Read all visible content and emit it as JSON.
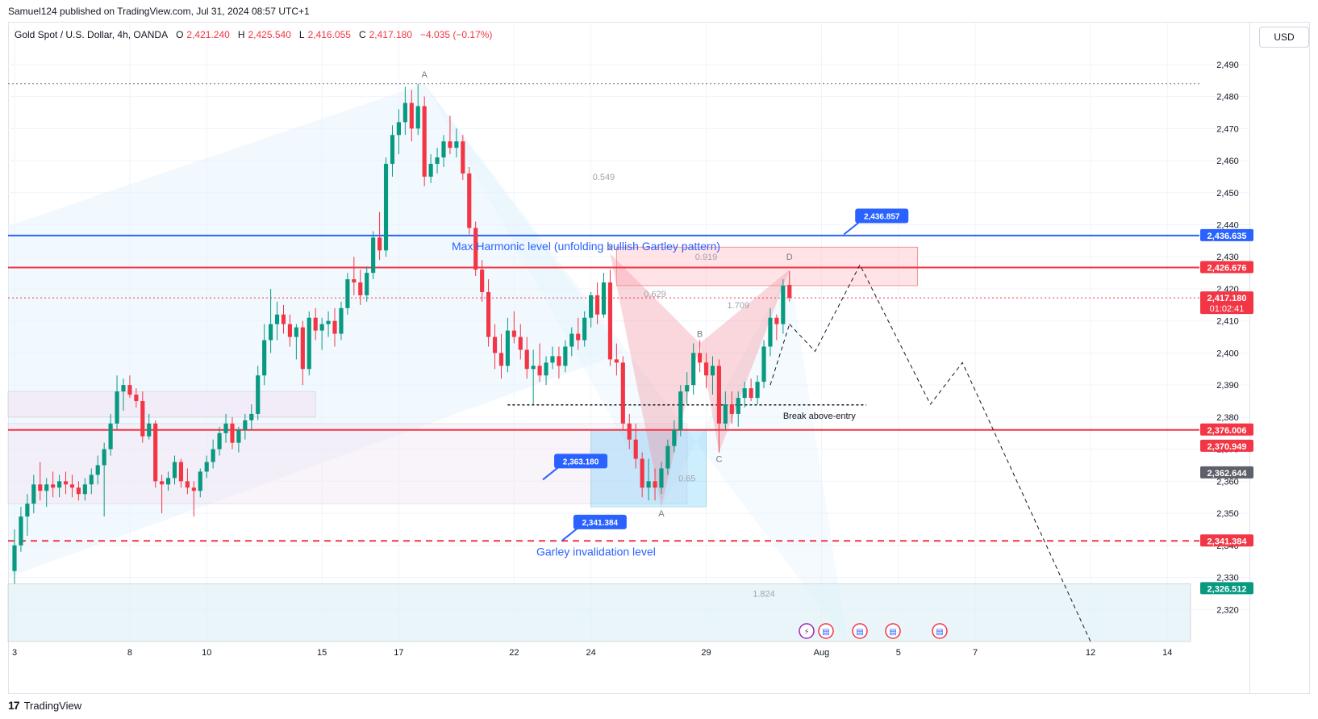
{
  "header": {
    "publisher": "Samuel124 published on TradingView.com, Jul 31, 2024 08:57 UTC+1",
    "symbol": "Gold Spot / U.S. Dollar, 4h, OANDA",
    "ohlc": [
      {
        "k": "O",
        "v": "2,421.240"
      },
      {
        "k": "H",
        "v": "2,425.540"
      },
      {
        "k": "L",
        "v": "2,416.055"
      },
      {
        "k": "C",
        "v": "2,417.180"
      }
    ],
    "change": "−4.035 (−0.17%)",
    "currency": "USD"
  },
  "footer": {
    "logo": "17",
    "brand": "TradingView"
  },
  "colors": {
    "up": "#089981",
    "down": "#f23645",
    "blue": "#2962ff",
    "red": "#f23645",
    "gray_label": "#5d606b",
    "grid": "#f0f3fa"
  },
  "chart_data": {
    "type": "candlestick",
    "title": "Gold Spot / U.S. Dollar, 4h, OANDA",
    "ylim": [
      2310,
      2495
    ],
    "yticks": [
      2320,
      2330,
      2340,
      2350,
      2360,
      2370,
      2380,
      2390,
      2400,
      2410,
      2420,
      2430,
      2440,
      2450,
      2460,
      2470,
      2480,
      2490
    ],
    "x_index_range": [
      0,
      184
    ],
    "xticks": [
      {
        "i": 0,
        "label": "3"
      },
      {
        "i": 18,
        "label": "8"
      },
      {
        "i": 30,
        "label": "10"
      },
      {
        "i": 48,
        "label": "15"
      },
      {
        "i": 60,
        "label": "17"
      },
      {
        "i": 78,
        "label": "22"
      },
      {
        "i": 90,
        "label": "24"
      },
      {
        "i": 108,
        "label": "29"
      },
      {
        "i": 126,
        "label": "Aug"
      },
      {
        "i": 138,
        "label": "5"
      },
      {
        "i": 150,
        "label": "7"
      },
      {
        "i": 168,
        "label": "12"
      },
      {
        "i": 180,
        "label": "14"
      }
    ],
    "candles": [
      {
        "i": 0,
        "o": 2332.0,
        "h": 2345.0,
        "l": 2328.0,
        "c": 2340.0
      },
      {
        "i": 1,
        "o": 2340.0,
        "h": 2352.0,
        "l": 2338.0,
        "c": 2349.0
      },
      {
        "i": 2,
        "o": 2349.0,
        "h": 2356.0,
        "l": 2343.0,
        "c": 2353.0
      },
      {
        "i": 3,
        "o": 2353.0,
        "h": 2362.0,
        "l": 2350.0,
        "c": 2359.0
      },
      {
        "i": 4,
        "o": 2359.0,
        "h": 2366.0,
        "l": 2354.0,
        "c": 2357.0
      },
      {
        "i": 5,
        "o": 2357.0,
        "h": 2361.0,
        "l": 2352.0,
        "c": 2359.0
      },
      {
        "i": 6,
        "o": 2359.0,
        "h": 2363.0,
        "l": 2355.0,
        "c": 2358.0
      },
      {
        "i": 7,
        "o": 2358.0,
        "h": 2362.0,
        "l": 2355.0,
        "c": 2360.0
      },
      {
        "i": 8,
        "o": 2360.0,
        "h": 2363.0,
        "l": 2356.0,
        "c": 2359.0
      },
      {
        "i": 9,
        "o": 2359.0,
        "h": 2362.0,
        "l": 2355.0,
        "c": 2358.0
      },
      {
        "i": 10,
        "o": 2358.0,
        "h": 2360.0,
        "l": 2354.0,
        "c": 2356.0
      },
      {
        "i": 11,
        "o": 2356.0,
        "h": 2361.0,
        "l": 2354.0,
        "c": 2359.0
      },
      {
        "i": 12,
        "o": 2359.0,
        "h": 2364.0,
        "l": 2356.0,
        "c": 2362.0
      },
      {
        "i": 13,
        "o": 2362.0,
        "h": 2368.0,
        "l": 2359.0,
        "c": 2365.0
      },
      {
        "i": 14,
        "o": 2365.0,
        "h": 2372.0,
        "l": 2349.0,
        "c": 2370.0
      },
      {
        "i": 15,
        "o": 2370.0,
        "h": 2381.0,
        "l": 2368.0,
        "c": 2378.0
      },
      {
        "i": 16,
        "o": 2378.0,
        "h": 2393.0,
        "l": 2376.0,
        "c": 2388.0
      },
      {
        "i": 17,
        "o": 2388.0,
        "h": 2392.0,
        "l": 2382.0,
        "c": 2390.0
      },
      {
        "i": 18,
        "o": 2390.0,
        "h": 2393.0,
        "l": 2386.0,
        "c": 2387.0
      },
      {
        "i": 19,
        "o": 2387.0,
        "h": 2389.0,
        "l": 2383.0,
        "c": 2385.0
      },
      {
        "i": 20,
        "o": 2385.0,
        "h": 2388.0,
        "l": 2372.0,
        "c": 2374.0
      },
      {
        "i": 21,
        "o": 2374.0,
        "h": 2381.0,
        "l": 2373.0,
        "c": 2378.0
      },
      {
        "i": 22,
        "o": 2378.0,
        "h": 2379.0,
        "l": 2358.0,
        "c": 2360.0
      },
      {
        "i": 23,
        "o": 2360.0,
        "h": 2362.0,
        "l": 2350.0,
        "c": 2359.0
      },
      {
        "i": 24,
        "o": 2359.0,
        "h": 2363.0,
        "l": 2357.0,
        "c": 2361.0
      },
      {
        "i": 25,
        "o": 2361.0,
        "h": 2368.0,
        "l": 2359.0,
        "c": 2366.0
      },
      {
        "i": 26,
        "o": 2366.0,
        "h": 2367.0,
        "l": 2358.0,
        "c": 2360.0
      },
      {
        "i": 27,
        "o": 2360.0,
        "h": 2364.0,
        "l": 2356.0,
        "c": 2358.0
      },
      {
        "i": 28,
        "o": 2358.0,
        "h": 2360.0,
        "l": 2349.0,
        "c": 2357.0
      },
      {
        "i": 29,
        "o": 2357.0,
        "h": 2364.0,
        "l": 2355.0,
        "c": 2363.0
      },
      {
        "i": 30,
        "o": 2363.0,
        "h": 2368.0,
        "l": 2361.0,
        "c": 2366.0
      },
      {
        "i": 31,
        "o": 2366.0,
        "h": 2373.0,
        "l": 2364.0,
        "c": 2370.0
      },
      {
        "i": 32,
        "o": 2370.0,
        "h": 2377.0,
        "l": 2368.0,
        "c": 2375.0
      },
      {
        "i": 33,
        "o": 2375.0,
        "h": 2381.0,
        "l": 2372.0,
        "c": 2378.0
      },
      {
        "i": 34,
        "o": 2378.0,
        "h": 2380.0,
        "l": 2370.0,
        "c": 2372.0
      },
      {
        "i": 35,
        "o": 2372.0,
        "h": 2377.0,
        "l": 2369.0,
        "c": 2376.0
      },
      {
        "i": 36,
        "o": 2376.0,
        "h": 2381.0,
        "l": 2373.0,
        "c": 2379.0
      },
      {
        "i": 37,
        "o": 2379.0,
        "h": 2384.0,
        "l": 2376.0,
        "c": 2381.0
      },
      {
        "i": 38,
        "o": 2381.0,
        "h": 2396.0,
        "l": 2379.0,
        "c": 2393.0
      },
      {
        "i": 39,
        "o": 2393.0,
        "h": 2409.0,
        "l": 2390.0,
        "c": 2404.0
      },
      {
        "i": 40,
        "o": 2404.0,
        "h": 2420.0,
        "l": 2400.0,
        "c": 2409.0
      },
      {
        "i": 41,
        "o": 2409.0,
        "h": 2416.0,
        "l": 2404.0,
        "c": 2412.0
      },
      {
        "i": 42,
        "o": 2412.0,
        "h": 2415.0,
        "l": 2406.0,
        "c": 2409.0
      },
      {
        "i": 43,
        "o": 2409.0,
        "h": 2412.0,
        "l": 2402.0,
        "c": 2405.0
      },
      {
        "i": 44,
        "o": 2405.0,
        "h": 2409.0,
        "l": 2398.0,
        "c": 2408.0
      },
      {
        "i": 45,
        "o": 2408.0,
        "h": 2410.0,
        "l": 2390.0,
        "c": 2395.0
      },
      {
        "i": 46,
        "o": 2395.0,
        "h": 2413.0,
        "l": 2393.0,
        "c": 2411.0
      },
      {
        "i": 47,
        "o": 2411.0,
        "h": 2414.0,
        "l": 2404.0,
        "c": 2407.0
      },
      {
        "i": 48,
        "o": 2407.0,
        "h": 2411.0,
        "l": 2401.0,
        "c": 2409.0
      },
      {
        "i": 49,
        "o": 2409.0,
        "h": 2413.0,
        "l": 2405.0,
        "c": 2410.0
      },
      {
        "i": 50,
        "o": 2410.0,
        "h": 2414.0,
        "l": 2402.0,
        "c": 2406.0
      },
      {
        "i": 51,
        "o": 2406.0,
        "h": 2416.0,
        "l": 2404.0,
        "c": 2414.0
      },
      {
        "i": 52,
        "o": 2414.0,
        "h": 2425.0,
        "l": 2412.0,
        "c": 2423.0
      },
      {
        "i": 53,
        "o": 2423.0,
        "h": 2430.0,
        "l": 2418.0,
        "c": 2422.0
      },
      {
        "i": 54,
        "o": 2422.0,
        "h": 2426.0,
        "l": 2415.0,
        "c": 2418.0
      },
      {
        "i": 55,
        "o": 2418.0,
        "h": 2427.0,
        "l": 2416.0,
        "c": 2425.0
      },
      {
        "i": 56,
        "o": 2425.0,
        "h": 2438.0,
        "l": 2423.0,
        "c": 2436.0
      },
      {
        "i": 57,
        "o": 2436.0,
        "h": 2444.0,
        "l": 2429.0,
        "c": 2432.0
      },
      {
        "i": 58,
        "o": 2432.0,
        "h": 2461.0,
        "l": 2430.0,
        "c": 2459.0
      },
      {
        "i": 59,
        "o": 2459.0,
        "h": 2471.0,
        "l": 2455.0,
        "c": 2468.0
      },
      {
        "i": 60,
        "o": 2468.0,
        "h": 2476.0,
        "l": 2462.0,
        "c": 2472.0
      },
      {
        "i": 61,
        "o": 2472.0,
        "h": 2483.0,
        "l": 2468.0,
        "c": 2478.0
      },
      {
        "i": 62,
        "o": 2478.0,
        "h": 2482.0,
        "l": 2466.0,
        "c": 2470.0
      },
      {
        "i": 63,
        "o": 2470.0,
        "h": 2484.0,
        "l": 2468.0,
        "c": 2477.0
      },
      {
        "i": 64,
        "o": 2477.0,
        "h": 2480.0,
        "l": 2452.0,
        "c": 2455.0
      },
      {
        "i": 65,
        "o": 2455.0,
        "h": 2462.0,
        "l": 2453.0,
        "c": 2459.0
      },
      {
        "i": 66,
        "o": 2459.0,
        "h": 2464.0,
        "l": 2456.0,
        "c": 2461.0
      },
      {
        "i": 67,
        "o": 2461.0,
        "h": 2468.0,
        "l": 2458.0,
        "c": 2466.0
      },
      {
        "i": 68,
        "o": 2466.0,
        "h": 2474.0,
        "l": 2462.0,
        "c": 2464.0
      },
      {
        "i": 69,
        "o": 2464.0,
        "h": 2470.0,
        "l": 2461.0,
        "c": 2466.0
      },
      {
        "i": 70,
        "o": 2466.0,
        "h": 2468.0,
        "l": 2454.0,
        "c": 2456.0
      },
      {
        "i": 71,
        "o": 2456.0,
        "h": 2458.0,
        "l": 2437.0,
        "c": 2439.0
      },
      {
        "i": 72,
        "o": 2439.0,
        "h": 2441.0,
        "l": 2424.0,
        "c": 2426.0
      },
      {
        "i": 73,
        "o": 2426.0,
        "h": 2429.0,
        "l": 2416.0,
        "c": 2419.0
      },
      {
        "i": 74,
        "o": 2419.0,
        "h": 2423.0,
        "l": 2402.0,
        "c": 2405.0
      },
      {
        "i": 75,
        "o": 2405.0,
        "h": 2409.0,
        "l": 2395.0,
        "c": 2400.0
      },
      {
        "i": 76,
        "o": 2400.0,
        "h": 2406.0,
        "l": 2392.0,
        "c": 2396.0
      },
      {
        "i": 77,
        "o": 2396.0,
        "h": 2411.0,
        "l": 2394.0,
        "c": 2407.0
      },
      {
        "i": 78,
        "o": 2407.0,
        "h": 2413.0,
        "l": 2403.0,
        "c": 2405.0
      },
      {
        "i": 79,
        "o": 2405.0,
        "h": 2409.0,
        "l": 2398.0,
        "c": 2401.0
      },
      {
        "i": 80,
        "o": 2401.0,
        "h": 2405.0,
        "l": 2392.0,
        "c": 2395.0
      },
      {
        "i": 81,
        "o": 2395.0,
        "h": 2401.0,
        "l": 2384.0,
        "c": 2396.0
      },
      {
        "i": 82,
        "o": 2396.0,
        "h": 2403.0,
        "l": 2391.0,
        "c": 2393.0
      },
      {
        "i": 83,
        "o": 2393.0,
        "h": 2399.0,
        "l": 2390.0,
        "c": 2397.0
      },
      {
        "i": 84,
        "o": 2397.0,
        "h": 2402.0,
        "l": 2395.0,
        "c": 2399.0
      },
      {
        "i": 85,
        "o": 2399.0,
        "h": 2402.0,
        "l": 2392.0,
        "c": 2396.0
      },
      {
        "i": 86,
        "o": 2396.0,
        "h": 2404.0,
        "l": 2394.0,
        "c": 2402.0
      },
      {
        "i": 87,
        "o": 2402.0,
        "h": 2408.0,
        "l": 2399.0,
        "c": 2406.0
      },
      {
        "i": 88,
        "o": 2406.0,
        "h": 2411.0,
        "l": 2401.0,
        "c": 2404.0
      },
      {
        "i": 89,
        "o": 2404.0,
        "h": 2413.0,
        "l": 2402.0,
        "c": 2411.0
      },
      {
        "i": 90,
        "o": 2411.0,
        "h": 2419.0,
        "l": 2408.0,
        "c": 2418.0
      },
      {
        "i": 91,
        "o": 2418.0,
        "h": 2422.0,
        "l": 2409.0,
        "c": 2412.0
      },
      {
        "i": 92,
        "o": 2412.0,
        "h": 2425.0,
        "l": 2411.0,
        "c": 2422.0
      },
      {
        "i": 93,
        "o": 2422.0,
        "h": 2426.0,
        "l": 2396.0,
        "c": 2398.0
      },
      {
        "i": 94,
        "o": 2398.0,
        "h": 2403.0,
        "l": 2393.0,
        "c": 2397.0
      },
      {
        "i": 95,
        "o": 2397.0,
        "h": 2399.0,
        "l": 2376.0,
        "c": 2378.0
      },
      {
        "i": 96,
        "o": 2378.0,
        "h": 2381.0,
        "l": 2370.0,
        "c": 2373.0
      },
      {
        "i": 97,
        "o": 2373.0,
        "h": 2378.0,
        "l": 2364.0,
        "c": 2367.0
      },
      {
        "i": 98,
        "o": 2367.0,
        "h": 2369.0,
        "l": 2355.0,
        "c": 2358.0
      },
      {
        "i": 99,
        "o": 2358.0,
        "h": 2367.0,
        "l": 2354.0,
        "c": 2360.0
      },
      {
        "i": 100,
        "o": 2360.0,
        "h": 2364.0,
        "l": 2354.0,
        "c": 2358.0
      },
      {
        "i": 101,
        "o": 2358.0,
        "h": 2366.0,
        "l": 2356.0,
        "c": 2364.0
      },
      {
        "i": 102,
        "o": 2364.0,
        "h": 2373.0,
        "l": 2362.0,
        "c": 2371.0
      },
      {
        "i": 103,
        "o": 2371.0,
        "h": 2379.0,
        "l": 2369.0,
        "c": 2376.0
      },
      {
        "i": 104,
        "o": 2376.0,
        "h": 2390.0,
        "l": 2374.0,
        "c": 2388.0
      },
      {
        "i": 105,
        "o": 2388.0,
        "h": 2394.0,
        "l": 2384.0,
        "c": 2390.0
      },
      {
        "i": 106,
        "o": 2390.0,
        "h": 2403.0,
        "l": 2387.0,
        "c": 2400.0
      },
      {
        "i": 107,
        "o": 2400.0,
        "h": 2404.0,
        "l": 2394.0,
        "c": 2397.0
      },
      {
        "i": 108,
        "o": 2397.0,
        "h": 2400.0,
        "l": 2389.0,
        "c": 2393.0
      },
      {
        "i": 109,
        "o": 2393.0,
        "h": 2399.0,
        "l": 2387.0,
        "c": 2396.0
      },
      {
        "i": 110,
        "o": 2396.0,
        "h": 2398.0,
        "l": 2369.0,
        "c": 2378.0
      },
      {
        "i": 111,
        "o": 2378.0,
        "h": 2388.0,
        "l": 2376.0,
        "c": 2384.0
      },
      {
        "i": 112,
        "o": 2384.0,
        "h": 2388.0,
        "l": 2378.0,
        "c": 2381.0
      },
      {
        "i": 113,
        "o": 2381.0,
        "h": 2388.0,
        "l": 2377.0,
        "c": 2386.0
      },
      {
        "i": 114,
        "o": 2386.0,
        "h": 2391.0,
        "l": 2383.0,
        "c": 2389.0
      },
      {
        "i": 115,
        "o": 2389.0,
        "h": 2392.0,
        "l": 2385.0,
        "c": 2386.0
      },
      {
        "i": 116,
        "o": 2386.0,
        "h": 2393.0,
        "l": 2384.0,
        "c": 2391.0
      },
      {
        "i": 117,
        "o": 2391.0,
        "h": 2404.0,
        "l": 2389.0,
        "c": 2402.0
      },
      {
        "i": 118,
        "o": 2402.0,
        "h": 2414.0,
        "l": 2399.0,
        "c": 2411.0
      },
      {
        "i": 119,
        "o": 2411.0,
        "h": 2412.0,
        "l": 2404.0,
        "c": 2409.0
      },
      {
        "i": 120,
        "o": 2409.0,
        "h": 2423.0,
        "l": 2406.0,
        "c": 2421.0
      },
      {
        "i": 121,
        "o": 2421.24,
        "h": 2425.54,
        "l": 2416.055,
        "c": 2417.18
      }
    ],
    "horizontal_lines": [
      {
        "price": 2436.635,
        "label": "2,436.635",
        "color": "#2962ff",
        "style": "solid",
        "text": "Max Harmonic level (unfolding bullish Gartley pattern)"
      },
      {
        "price": 2426.676,
        "label": "2,426.676",
        "color": "#f23645",
        "style": "solid"
      },
      {
        "price": 2376.006,
        "label": "2,376.006",
        "color": "#f23645",
        "style": "solid"
      },
      {
        "price": 2341.384,
        "label": "2,341.384",
        "color": "#f23645",
        "style": "dashed",
        "text": "Garley invalidation level"
      },
      {
        "price": 2484.0,
        "label": "",
        "color": "#787b86",
        "style": "dotted"
      },
      {
        "price": 2417.18,
        "label": "2,417.180",
        "color": "#f23645",
        "style": "dotted",
        "countdown": "01:02:41"
      }
    ],
    "axis_labels": [
      {
        "price": 2370.949,
        "label": "2,370.949",
        "color": "#f23645"
      },
      {
        "price": 2362.644,
        "label": "2,362.644",
        "color": "#5d606b"
      },
      {
        "price": 2326.512,
        "label": "2,326.512",
        "color": "#089981"
      }
    ],
    "callouts": [
      {
        "text": "2,436.857",
        "i": 130,
        "price": 2439.5
      },
      {
        "text": "2,363.180",
        "i": 83,
        "price": 2363.0
      },
      {
        "text": "2,341.384",
        "i": 86,
        "price": 2344.0
      }
    ],
    "pattern_labels": [
      {
        "text": "A",
        "i": 64,
        "price": 2486.0
      },
      {
        "text": "X",
        "i": 93,
        "price": 2432.0
      },
      {
        "text": "B",
        "i": 107,
        "price": 2405.0
      },
      {
        "text": "C",
        "i": 110,
        "price": 2366.0
      },
      {
        "text": "D",
        "i": 121,
        "price": 2429.0
      },
      {
        "text": "A",
        "i": 101,
        "price": 2349.0
      }
    ],
    "ratio_labels": [
      {
        "text": "0.549",
        "i": 92,
        "price": 2454.0
      },
      {
        "text": "0.919",
        "i": 108,
        "price": 2429.0
      },
      {
        "text": "0.629",
        "i": 100,
        "price": 2417.5
      },
      {
        "text": "1.709",
        "i": 113,
        "price": 2414.0
      },
      {
        "text": "0.65",
        "i": 105,
        "price": 2360.0
      },
      {
        "text": "1.824",
        "i": 117,
        "price": 2324.0
      }
    ],
    "annotations": [
      {
        "text": "Break above-entry",
        "i": 120,
        "price": 2379.5
      }
    ],
    "event_icons": 5
  }
}
